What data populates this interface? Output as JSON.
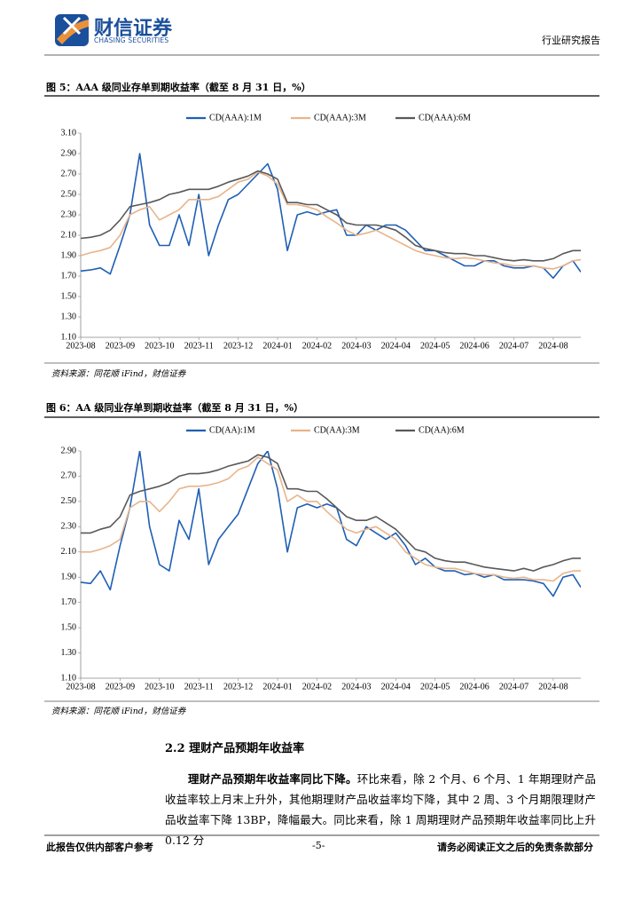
{
  "header": {
    "brand": "财信证券",
    "brand_en": "CHASING SECURITIES",
    "report_type": "行业研究报告"
  },
  "chart_data": [
    {
      "type": "line",
      "title": "图 5：AAA 级同业存单到期收益率（截至 8 月 31 日，%）",
      "source": "资料来源：同花顺 iFind，财信证券",
      "x": [
        0,
        0.25,
        0.5,
        0.75,
        1,
        1.25,
        1.5,
        1.75,
        2,
        2.25,
        2.5,
        2.75,
        3,
        3.25,
        3.5,
        3.75,
        4,
        4.25,
        4.5,
        4.75,
        5,
        5.25,
        5.5,
        5.75,
        6,
        6.25,
        6.5,
        6.75,
        7,
        7.25,
        7.5,
        7.75,
        8,
        8.25,
        8.5,
        8.75,
        9,
        9.25,
        9.5,
        9.75,
        10,
        10.25,
        10.5,
        10.75,
        11,
        11.25,
        11.5,
        11.75,
        12,
        12.25,
        12.5,
        12.7
      ],
      "xlim": [
        0,
        12.7
      ],
      "xticks": [
        {
          "value": 0,
          "label": "2023-08"
        },
        {
          "value": 1,
          "label": "2023-09"
        },
        {
          "value": 2,
          "label": "2023-10"
        },
        {
          "value": 3,
          "label": "2023-11"
        },
        {
          "value": 4,
          "label": "2023-12"
        },
        {
          "value": 5,
          "label": "2024-01"
        },
        {
          "value": 6,
          "label": "2024-02"
        },
        {
          "value": 7,
          "label": "2024-03"
        },
        {
          "value": 8,
          "label": "2024-04"
        },
        {
          "value": 9,
          "label": "2024-05"
        },
        {
          "value": 10,
          "label": "2024-06"
        },
        {
          "value": 11,
          "label": "2024-07"
        },
        {
          "value": 12,
          "label": "2024-08"
        }
      ],
      "ylim": [
        1.1,
        3.1
      ],
      "yticks": [
        {
          "value": 1.1,
          "label": "1.10"
        },
        {
          "value": 1.3,
          "label": "1.30"
        },
        {
          "value": 1.5,
          "label": "1.50"
        },
        {
          "value": 1.7,
          "label": "1.70"
        },
        {
          "value": 1.9,
          "label": "1.90"
        },
        {
          "value": 2.1,
          "label": "2.10"
        },
        {
          "value": 2.3,
          "label": "2.30"
        },
        {
          "value": 2.5,
          "label": "2.50"
        },
        {
          "value": 2.7,
          "label": "2.70"
        },
        {
          "value": 2.9,
          "label": "2.90"
        },
        {
          "value": 3.1,
          "label": "3.10"
        }
      ],
      "legend": "top",
      "series": [
        {
          "name": "CD(AAA):1M",
          "color": "#1f5fb4",
          "values": [
            1.75,
            1.76,
            1.78,
            1.72,
            2.0,
            2.3,
            2.9,
            2.2,
            2.0,
            2.0,
            2.3,
            2.0,
            2.5,
            1.9,
            2.2,
            2.45,
            2.5,
            2.6,
            2.7,
            2.8,
            2.55,
            1.95,
            2.3,
            2.33,
            2.3,
            2.33,
            2.35,
            2.1,
            2.1,
            2.2,
            2.15,
            2.2,
            2.2,
            2.15,
            2.05,
            1.95,
            1.95,
            1.9,
            1.85,
            1.8,
            1.8,
            1.85,
            1.85,
            1.8,
            1.78,
            1.78,
            1.8,
            1.78,
            1.68,
            1.8,
            1.85,
            1.74
          ]
        },
        {
          "name": "CD(AAA):3M",
          "color": "#e8b48a",
          "values": [
            1.9,
            1.93,
            1.95,
            1.98,
            2.1,
            2.3,
            2.35,
            2.38,
            2.25,
            2.3,
            2.35,
            2.45,
            2.45,
            2.45,
            2.48,
            2.55,
            2.62,
            2.65,
            2.72,
            2.68,
            2.6,
            2.4,
            2.4,
            2.38,
            2.35,
            2.28,
            2.22,
            2.15,
            2.1,
            2.12,
            2.15,
            2.1,
            2.05,
            2.0,
            1.95,
            1.92,
            1.9,
            1.88,
            1.87,
            1.88,
            1.87,
            1.85,
            1.83,
            1.82,
            1.8,
            1.8,
            1.8,
            1.78,
            1.77,
            1.8,
            1.85,
            1.86
          ]
        },
        {
          "name": "CD(AAA):6M",
          "color": "#595959",
          "values": [
            2.07,
            2.08,
            2.1,
            2.15,
            2.25,
            2.38,
            2.4,
            2.42,
            2.45,
            2.5,
            2.52,
            2.55,
            2.55,
            2.55,
            2.58,
            2.62,
            2.65,
            2.68,
            2.73,
            2.7,
            2.65,
            2.42,
            2.42,
            2.4,
            2.4,
            2.35,
            2.3,
            2.22,
            2.2,
            2.2,
            2.2,
            2.18,
            2.15,
            2.08,
            2.0,
            1.97,
            1.95,
            1.93,
            1.92,
            1.92,
            1.9,
            1.9,
            1.88,
            1.86,
            1.85,
            1.86,
            1.85,
            1.85,
            1.87,
            1.92,
            1.95,
            1.95
          ]
        }
      ]
    },
    {
      "type": "line",
      "title": "图 6：AA 级同业存单到期收益率（截至 8 月 31 日，%）",
      "source": "资料来源：同花顺 iFind，财信证券",
      "x": [
        0,
        0.25,
        0.5,
        0.75,
        1,
        1.25,
        1.5,
        1.75,
        2,
        2.25,
        2.5,
        2.75,
        3,
        3.25,
        3.5,
        3.75,
        4,
        4.25,
        4.5,
        4.75,
        5,
        5.25,
        5.5,
        5.75,
        6,
        6.25,
        6.5,
        6.75,
        7,
        7.25,
        7.5,
        7.75,
        8,
        8.25,
        8.5,
        8.75,
        9,
        9.25,
        9.5,
        9.75,
        10,
        10.25,
        10.5,
        10.75,
        11,
        11.25,
        11.5,
        11.75,
        12,
        12.25,
        12.5,
        12.7
      ],
      "xlim": [
        0,
        12.7
      ],
      "xticks": [
        {
          "value": 0,
          "label": "2023-08"
        },
        {
          "value": 1,
          "label": "2023-09"
        },
        {
          "value": 2,
          "label": "2023-10"
        },
        {
          "value": 3,
          "label": "2023-11"
        },
        {
          "value": 4,
          "label": "2023-12"
        },
        {
          "value": 5,
          "label": "2024-01"
        },
        {
          "value": 6,
          "label": "2024-02"
        },
        {
          "value": 7,
          "label": "2024-03"
        },
        {
          "value": 8,
          "label": "2024-04"
        },
        {
          "value": 9,
          "label": "2024-05"
        },
        {
          "value": 10,
          "label": "2024-06"
        },
        {
          "value": 11,
          "label": "2024-07"
        },
        {
          "value": 12,
          "label": "2024-08"
        }
      ],
      "ylim": [
        1.1,
        2.9
      ],
      "yticks": [
        {
          "value": 1.1,
          "label": "1.10"
        },
        {
          "value": 1.3,
          "label": "1.30"
        },
        {
          "value": 1.5,
          "label": "1.50"
        },
        {
          "value": 1.7,
          "label": "1.70"
        },
        {
          "value": 1.9,
          "label": "1.90"
        },
        {
          "value": 2.1,
          "label": "2.10"
        },
        {
          "value": 2.3,
          "label": "2.30"
        },
        {
          "value": 2.5,
          "label": "2.50"
        },
        {
          "value": 2.7,
          "label": "2.70"
        },
        {
          "value": 2.9,
          "label": "2.90"
        }
      ],
      "legend": "top",
      "series": [
        {
          "name": "CD(AA):1M",
          "color": "#1f5fb4",
          "values": [
            1.86,
            1.85,
            1.95,
            1.8,
            2.15,
            2.45,
            2.9,
            2.3,
            2.0,
            1.95,
            2.35,
            2.2,
            2.6,
            2.0,
            2.2,
            2.3,
            2.4,
            2.6,
            2.8,
            2.9,
            2.6,
            2.1,
            2.45,
            2.48,
            2.45,
            2.48,
            2.45,
            2.2,
            2.15,
            2.3,
            2.25,
            2.2,
            2.25,
            2.15,
            2.0,
            2.05,
            1.98,
            1.95,
            1.95,
            1.92,
            1.93,
            1.9,
            1.92,
            1.88,
            1.88,
            1.88,
            1.87,
            1.85,
            1.75,
            1.9,
            1.92,
            1.82
          ]
        },
        {
          "name": "CD(AA):3M",
          "color": "#e8b48a",
          "values": [
            2.1,
            2.1,
            2.12,
            2.15,
            2.2,
            2.45,
            2.5,
            2.5,
            2.42,
            2.5,
            2.6,
            2.62,
            2.62,
            2.63,
            2.65,
            2.68,
            2.75,
            2.78,
            2.85,
            2.8,
            2.75,
            2.5,
            2.55,
            2.5,
            2.5,
            2.42,
            2.35,
            2.28,
            2.25,
            2.28,
            2.3,
            2.25,
            2.2,
            2.1,
            2.05,
            2.0,
            1.98,
            1.97,
            1.97,
            1.95,
            1.93,
            1.92,
            1.92,
            1.9,
            1.89,
            1.9,
            1.88,
            1.88,
            1.87,
            1.93,
            1.95,
            1.95
          ]
        },
        {
          "name": "CD(AA):6M",
          "color": "#595959",
          "values": [
            2.25,
            2.25,
            2.28,
            2.3,
            2.38,
            2.55,
            2.58,
            2.6,
            2.62,
            2.65,
            2.7,
            2.72,
            2.72,
            2.73,
            2.75,
            2.78,
            2.8,
            2.82,
            2.87,
            2.85,
            2.8,
            2.6,
            2.6,
            2.58,
            2.58,
            2.52,
            2.45,
            2.38,
            2.35,
            2.35,
            2.38,
            2.33,
            2.28,
            2.2,
            2.12,
            2.1,
            2.05,
            2.03,
            2.02,
            2.02,
            2.0,
            1.98,
            1.97,
            1.96,
            1.95,
            1.97,
            1.95,
            1.98,
            2.0,
            2.03,
            2.05,
            2.05
          ]
        }
      ]
    }
  ],
  "section": {
    "heading": "2.2 理财产品预期年收益率",
    "lead": "理财产品预期年收益率同比下降。",
    "text": "环比来看，除 2 个月、6 个月、1 年期理财产品收益率较上月末上升外，其他期理财产品收益率均下降，其中 2 周、3 个月期限理财产品收益率下降 13BP，降幅最大。同比来看，除 1 周期理财产品预期年收益率同比上升 0.12 分"
  },
  "footer": {
    "left": "此报告仅供内部客户参考",
    "page": "-5-",
    "right": "请务必阅读正文之后的免责条款部分"
  }
}
